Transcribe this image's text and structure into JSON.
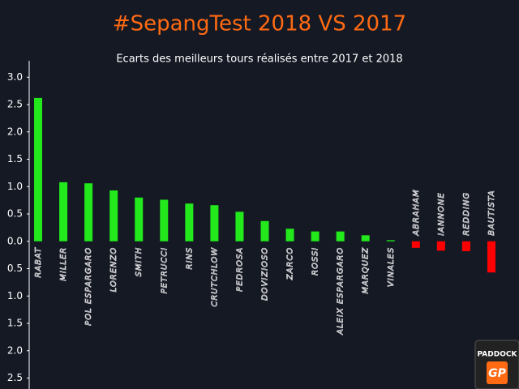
{
  "chart_data": {
    "type": "bar",
    "title": "#SepangTest 2018 VS 2017",
    "subtitle": "Ecarts des meilleurs tours réalisés entre 2017 et 2018",
    "categories": [
      "RABAT",
      "MILLER",
      "POL ESPARGARO",
      "LORENZO",
      "SMITH",
      "PETRUCCI",
      "RINS",
      "CRUTCHLOW",
      "PEDROSA",
      "DOVIZIOSO",
      "ZARCO",
      "ROSSI",
      "ALEIX ESPARGARO",
      "MARQUEZ",
      "VINALES",
      "ABRAHAM",
      "IANNONE",
      "REDDING",
      "BAUTISTA"
    ],
    "values": [
      2.62,
      1.08,
      1.06,
      0.93,
      0.8,
      0.76,
      0.69,
      0.66,
      0.54,
      0.37,
      0.23,
      0.18,
      0.18,
      0.11,
      0.02,
      -0.12,
      -0.17,
      -0.18,
      -0.57
    ],
    "colors": [
      "#22e81c",
      "#22e81c",
      "#22e81c",
      "#22e81c",
      "#22e81c",
      "#22e81c",
      "#22e81c",
      "#22e81c",
      "#22e81c",
      "#22e81c",
      "#22e81c",
      "#22e81c",
      "#22e81c",
      "#22e81c",
      "#22e81c",
      "#ff0000",
      "#ff0000",
      "#ff0000",
      "#ff0000"
    ],
    "ylim": [
      -2.7,
      3.3
    ],
    "yticks": [
      {
        "value": 3.0,
        "label": "3.0"
      },
      {
        "value": 2.5,
        "label": "2.5"
      },
      {
        "value": 2.0,
        "label": "2.0"
      },
      {
        "value": 1.5,
        "label": "1.5"
      },
      {
        "value": 1.0,
        "label": "1.0"
      },
      {
        "value": 0.5,
        "label": "0.5"
      },
      {
        "value": 0.0,
        "label": "0.0"
      },
      {
        "value": -0.5,
        "label": "0.5"
      },
      {
        "value": -1.0,
        "label": "1.0"
      },
      {
        "value": -1.5,
        "label": "1.5"
      },
      {
        "value": -2.0,
        "label": "2.0"
      },
      {
        "value": -2.5,
        "label": "2.5"
      }
    ],
    "grid": false
  },
  "logo": {
    "line1": "PADDOCK",
    "line2": "GP"
  }
}
